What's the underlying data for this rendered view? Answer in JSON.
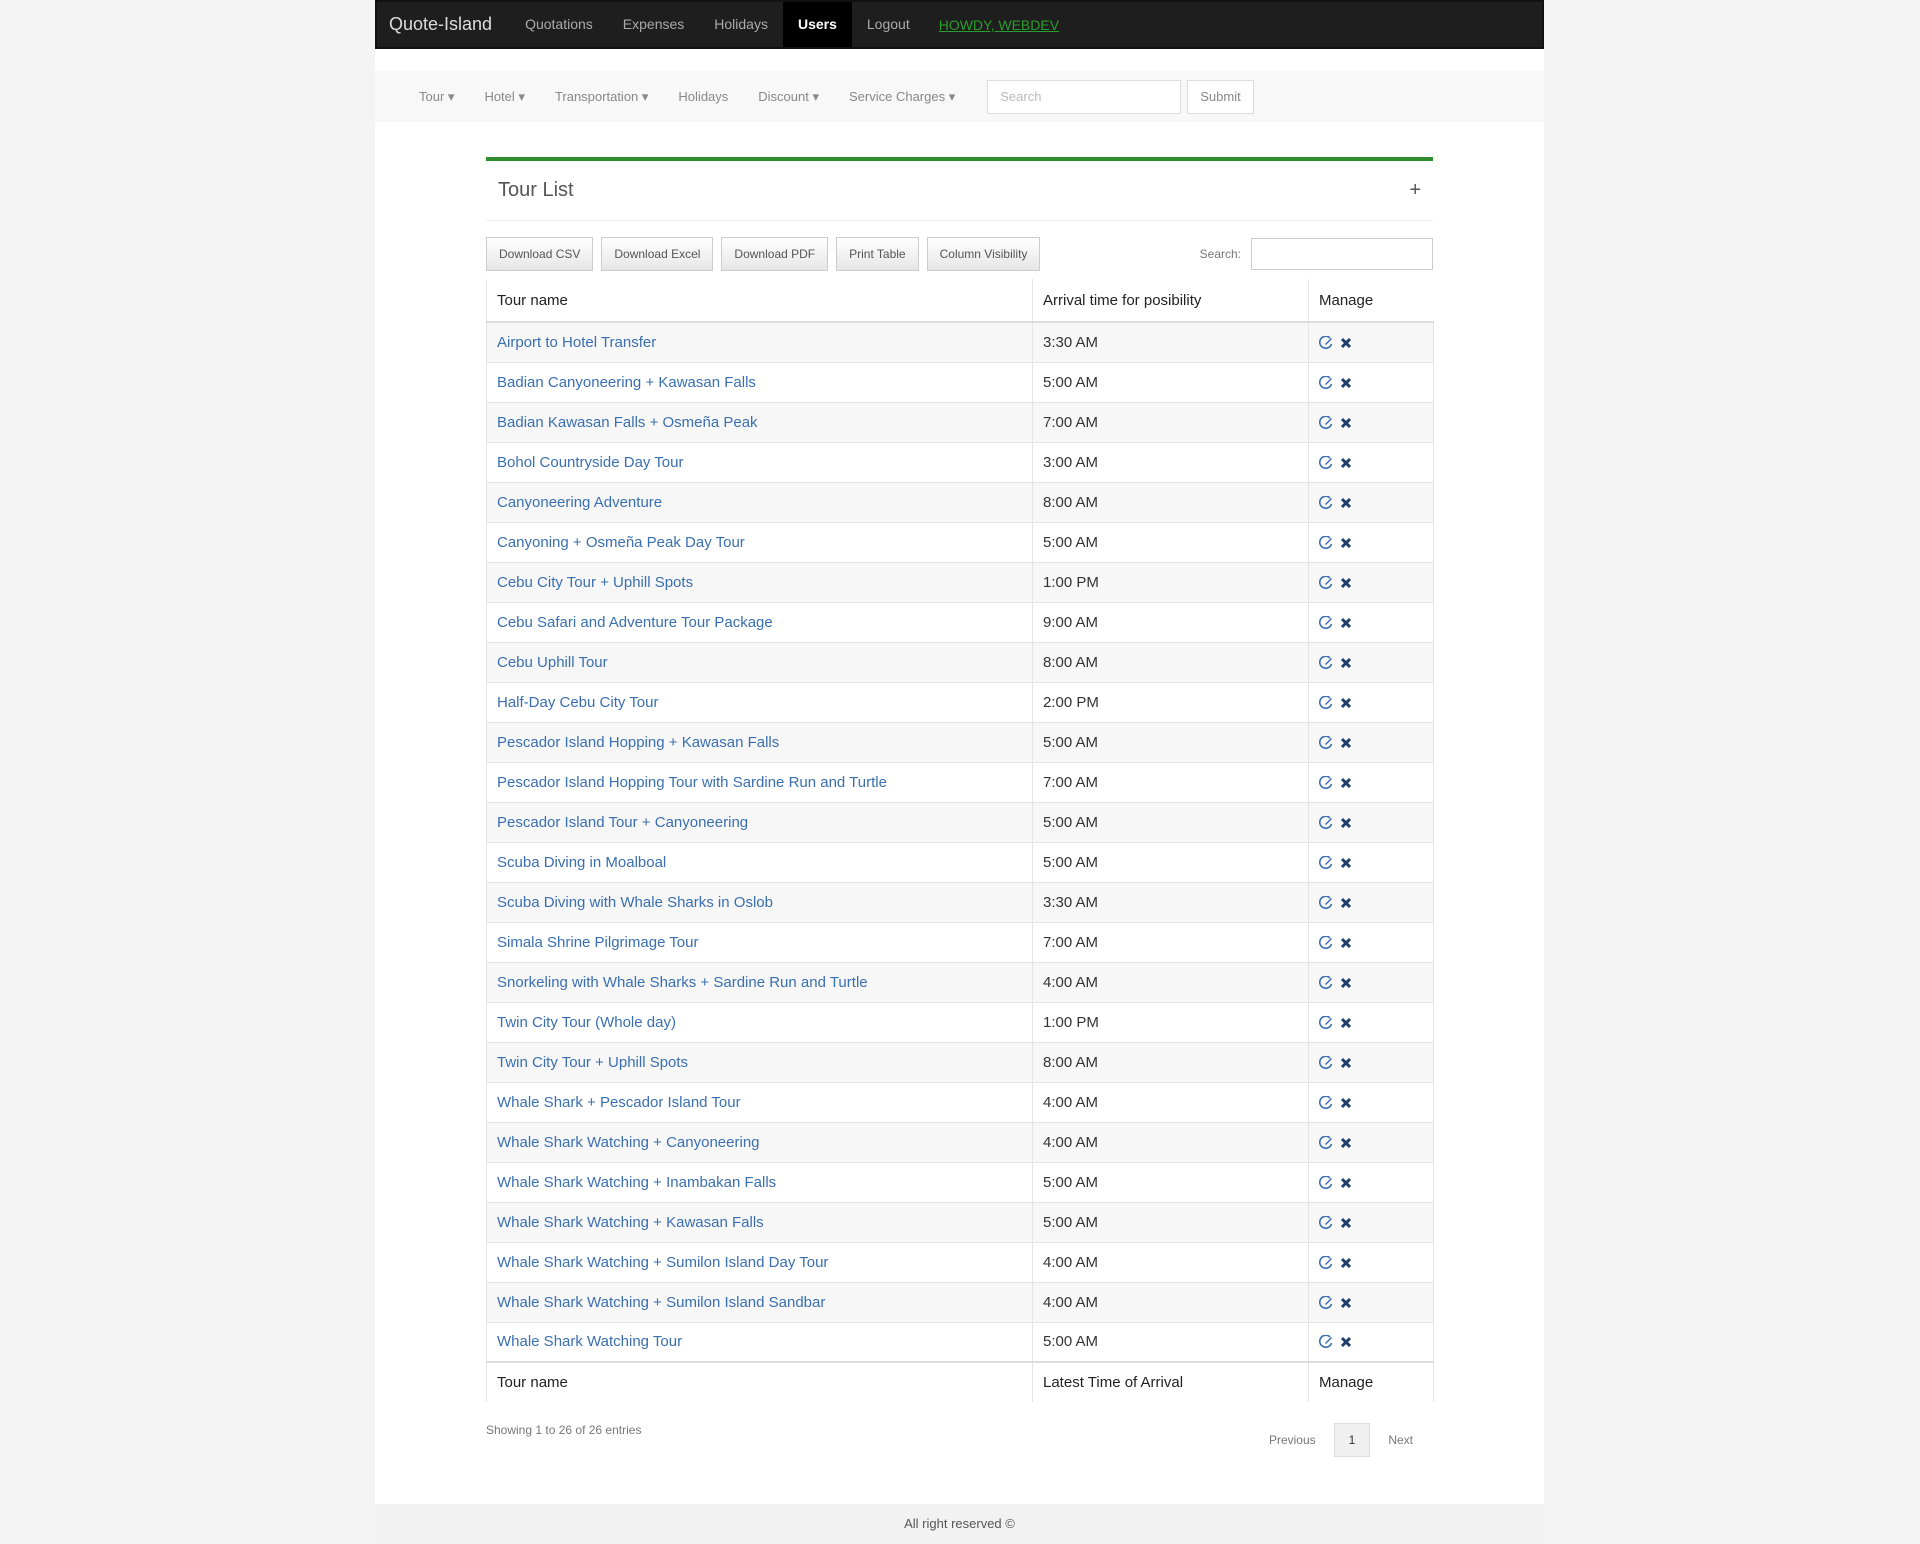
{
  "navbar": {
    "brand": "Quote-Island",
    "links": [
      "Quotations",
      "Expenses",
      "Holidays",
      "Users",
      "Logout"
    ],
    "active": "Users",
    "user": "HOWDY, WEBDEV"
  },
  "subnav": {
    "menus": [
      "Tour",
      "Hotel",
      "Transportation"
    ],
    "plain": "Holidays",
    "menus2": [
      "Discount",
      "Service Charges"
    ],
    "search_placeholder": "Search",
    "submit": "Submit"
  },
  "panel": {
    "title": "Tour List",
    "add": "+"
  },
  "toolbar": {
    "buttons": [
      "Download CSV",
      "Download Excel",
      "Download PDF",
      "Print Table"
    ],
    "column_visibility": "Column Visibility",
    "search_label": "Search:"
  },
  "table": {
    "header": [
      "Tour name",
      "Arrival time for posibility",
      "Manage"
    ],
    "rows": [
      [
        "Airport to Hotel Transfer",
        "3:30 AM"
      ],
      [
        "Badian Canyoneering + Kawasan Falls",
        "5:00 AM"
      ],
      [
        "Badian Kawasan Falls + Osmeña Peak",
        "7:00 AM"
      ],
      [
        "Bohol Countryside Day Tour",
        "3:00 AM"
      ],
      [
        "Canyoneering Adventure",
        "8:00 AM"
      ],
      [
        "Canyoning + Osmeña Peak Day Tour",
        "5:00 AM"
      ],
      [
        "Cebu City Tour + Uphill Spots",
        "1:00 PM"
      ],
      [
        "Cebu Safari and Adventure Tour Package",
        "9:00 AM"
      ],
      [
        "Cebu Uphill Tour",
        "8:00 AM"
      ],
      [
        "Half-Day Cebu City Tour",
        "2:00 PM"
      ],
      [
        "Pescador Island Hopping + Kawasan Falls",
        "5:00 AM"
      ],
      [
        "Pescador Island Hopping Tour with Sardine Run and Turtle",
        "7:00 AM"
      ],
      [
        "Pescador Island Tour + Canyoneering",
        "5:00 AM"
      ],
      [
        "Scuba Diving in Moalboal",
        "5:00 AM"
      ],
      [
        "Scuba Diving with Whale Sharks in Oslob",
        "3:30 AM"
      ],
      [
        "Simala Shrine Pilgrimage Tour",
        "7:00 AM"
      ],
      [
        "Snorkeling with Whale Sharks + Sardine Run and Turtle",
        "4:00 AM"
      ],
      [
        "Twin City Tour (Whole day)",
        "1:00 PM"
      ],
      [
        "Twin City Tour + Uphill Spots",
        "8:00 AM"
      ],
      [
        "Whale Shark + Pescador Island Tour",
        "4:00 AM"
      ],
      [
        "Whale Shark Watching + Canyoneering",
        "4:00 AM"
      ],
      [
        "Whale Shark Watching + Inambakan Falls",
        "5:00 AM"
      ],
      [
        "Whale Shark Watching + Kawasan Falls",
        "5:00 AM"
      ],
      [
        "Whale Shark Watching + Sumilon Island Day Tour",
        "4:00 AM"
      ],
      [
        "Whale Shark Watching + Sumilon Island Sandbar",
        "4:00 AM"
      ],
      [
        "Whale Shark Watching Tour",
        "5:00 AM"
      ]
    ],
    "footer": [
      "Tour name",
      "Latest Time of Arrival",
      "Manage"
    ]
  },
  "pagination": {
    "info": "Showing 1 to 26 of 26 entries",
    "previous": "Previous",
    "page": "1",
    "next": "Next"
  },
  "footer": "All right reserved ©"
}
